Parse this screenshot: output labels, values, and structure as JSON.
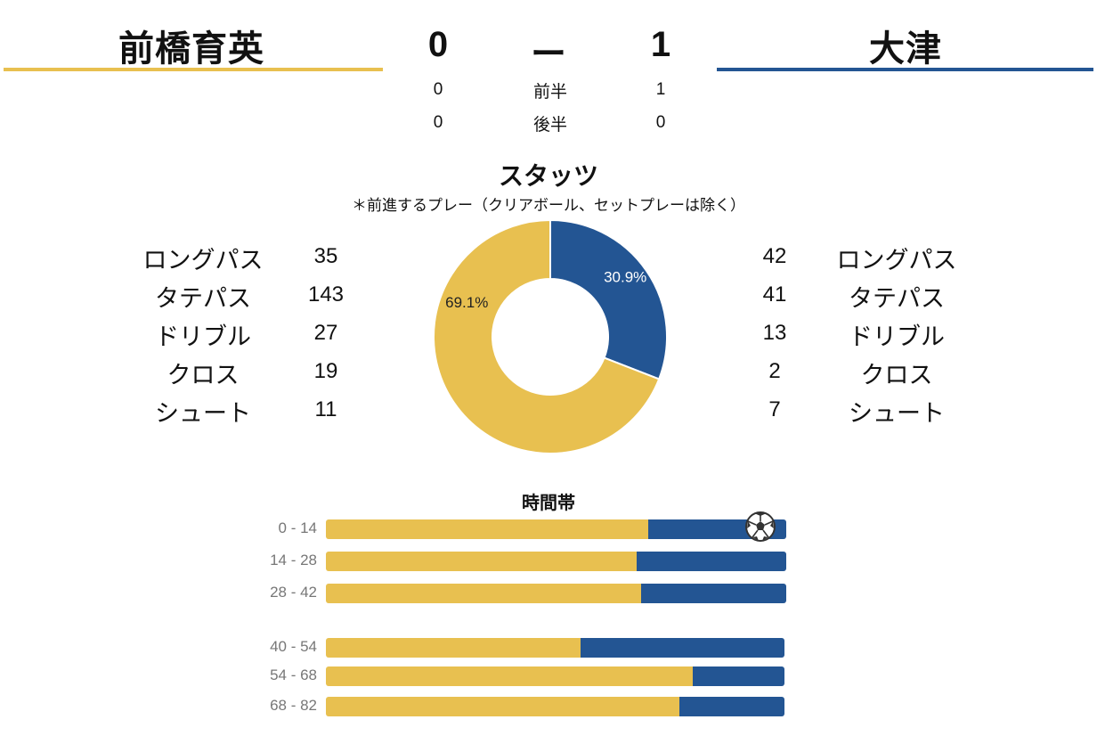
{
  "header": {
    "home_team": "前橋育英",
    "away_team": "大津",
    "home_score": "0",
    "separator": "ー",
    "away_score": "1",
    "halves": [
      {
        "label": "前半",
        "home": "0",
        "away": "1"
      },
      {
        "label": "後半",
        "home": "0",
        "away": "0"
      }
    ]
  },
  "stats": {
    "title": "スタッツ",
    "note": "＊前進するプレー（クリアボール、セットプレーは除く）",
    "home": [
      {
        "label": "ロングパス",
        "value": "35"
      },
      {
        "label": "タテパス",
        "value": "143"
      },
      {
        "label": "ドリブル",
        "value": "27"
      },
      {
        "label": "クロス",
        "value": "19"
      },
      {
        "label": "シュート",
        "value": "11"
      }
    ],
    "away": [
      {
        "label": "ロングパス",
        "value": "42"
      },
      {
        "label": "タテパス",
        "value": "41"
      },
      {
        "label": "ドリブル",
        "value": "13"
      },
      {
        "label": "クロス",
        "value": "2"
      },
      {
        "label": "シュート",
        "value": "7"
      }
    ],
    "donut": {
      "home_pct": 69.1,
      "away_pct": 30.9,
      "home_label": "69.1%",
      "away_label": "30.9%"
    }
  },
  "time_bands": {
    "title": "時間帯",
    "bands": [
      {
        "label": "0 - 14",
        "home_share": 0.7,
        "goal": true
      },
      {
        "label": "14 - 28",
        "home_share": 0.675,
        "goal": false
      },
      {
        "label": "28 - 42",
        "home_share": 0.685,
        "goal": false
      },
      {
        "label": "40 - 54",
        "home_share": 0.555,
        "goal": false
      },
      {
        "label": "54 - 68",
        "home_share": 0.8,
        "goal": false
      },
      {
        "label": "68 - 82",
        "home_share": 0.77,
        "goal": false
      }
    ]
  },
  "colors": {
    "home": "#E8C050",
    "away": "#235593"
  },
  "icons": {
    "goal": "soccer-ball-icon"
  }
}
